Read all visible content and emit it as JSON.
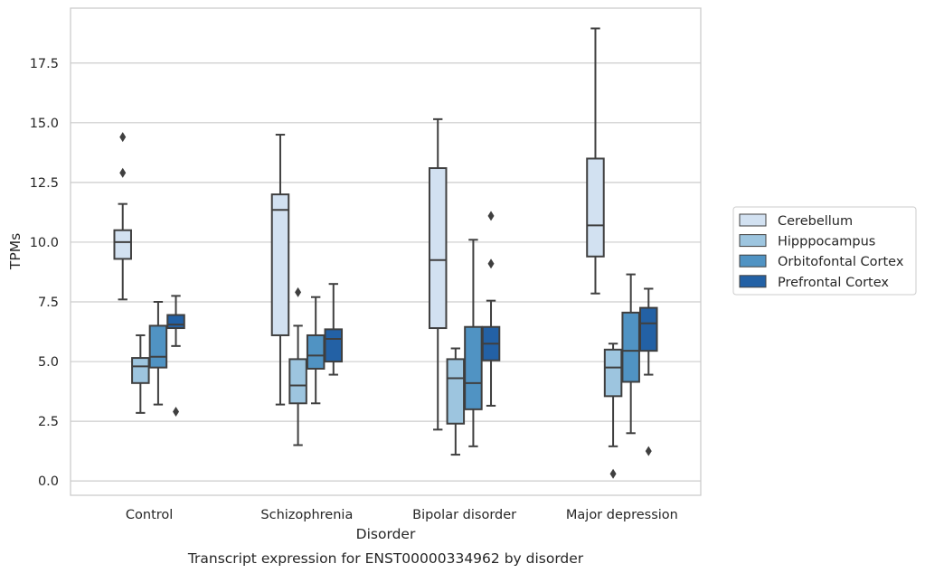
{
  "chart_data": {
    "type": "box",
    "title": "",
    "caption": "Transcript expression for ENST00000334962 by disorder",
    "xlabel": "Disorder",
    "ylabel": "TPMs",
    "ylim": [
      -0.6,
      19.8
    ],
    "yticks": [
      "0.0",
      "2.5",
      "5.0",
      "7.5",
      "10.0",
      "12.5",
      "15.0",
      "17.5"
    ],
    "grid": "horizontal",
    "legend_placement": "right",
    "categories": [
      "Control",
      "Schizophrenia",
      "Bipolar disorder",
      "Major depression"
    ],
    "series": [
      {
        "name": "Cerebellum",
        "color": "#d2e1f1",
        "boxes": [
          {
            "whislo": 7.6,
            "q1": 9.3,
            "med": 10.0,
            "q3": 10.5,
            "whishi": 11.6,
            "fliers": [
              12.9,
              14.4
            ]
          },
          {
            "whislo": 3.2,
            "q1": 6.1,
            "med": 11.35,
            "q3": 12.0,
            "whishi": 14.5,
            "fliers": []
          },
          {
            "whislo": 2.15,
            "q1": 6.4,
            "med": 9.25,
            "q3": 13.1,
            "whishi": 15.15,
            "fliers": []
          },
          {
            "whislo": 7.85,
            "q1": 9.4,
            "med": 10.7,
            "q3": 13.5,
            "whishi": 18.95,
            "fliers": []
          }
        ]
      },
      {
        "name": "Hipppocampus",
        "color": "#9dc5df",
        "boxes": [
          {
            "whislo": 2.85,
            "q1": 4.1,
            "med": 4.8,
            "q3": 5.15,
            "whishi": 6.1,
            "fliers": []
          },
          {
            "whislo": 1.5,
            "q1": 3.25,
            "med": 4.0,
            "q3": 5.1,
            "whishi": 6.5,
            "fliers": [
              7.9
            ]
          },
          {
            "whislo": 1.1,
            "q1": 2.4,
            "med": 4.3,
            "q3": 5.1,
            "whishi": 5.55,
            "fliers": []
          },
          {
            "whislo": 1.45,
            "q1": 3.55,
            "med": 4.75,
            "q3": 5.5,
            "whishi": 5.75,
            "fliers": [
              0.3
            ]
          }
        ]
      },
      {
        "name": "Orbitofontal Cortex",
        "color": "#5093c3",
        "boxes": [
          {
            "whislo": 3.2,
            "q1": 4.75,
            "med": 5.2,
            "q3": 6.5,
            "whishi": 7.5,
            "fliers": []
          },
          {
            "whislo": 3.25,
            "q1": 4.7,
            "med": 5.25,
            "q3": 6.1,
            "whishi": 7.7,
            "fliers": []
          },
          {
            "whislo": 1.45,
            "q1": 3.0,
            "med": 4.1,
            "q3": 6.45,
            "whishi": 10.1,
            "fliers": []
          },
          {
            "whislo": 2.0,
            "q1": 4.15,
            "med": 5.45,
            "q3": 7.05,
            "whishi": 8.65,
            "fliers": []
          }
        ]
      },
      {
        "name": "Prefrontal Cortex",
        "color": "#2361a5",
        "boxes": [
          {
            "whislo": 5.65,
            "q1": 6.4,
            "med": 6.55,
            "q3": 6.95,
            "whishi": 7.75,
            "fliers": [
              2.9
            ]
          },
          {
            "whislo": 4.45,
            "q1": 5.0,
            "med": 5.95,
            "q3": 6.35,
            "whishi": 8.25,
            "fliers": []
          },
          {
            "whislo": 3.15,
            "q1": 5.05,
            "med": 5.75,
            "q3": 6.45,
            "whishi": 7.55,
            "fliers": [
              9.1,
              11.1
            ]
          },
          {
            "whislo": 4.45,
            "q1": 5.45,
            "med": 6.6,
            "q3": 7.25,
            "whishi": 8.05,
            "fliers": [
              1.25
            ]
          }
        ]
      }
    ]
  }
}
